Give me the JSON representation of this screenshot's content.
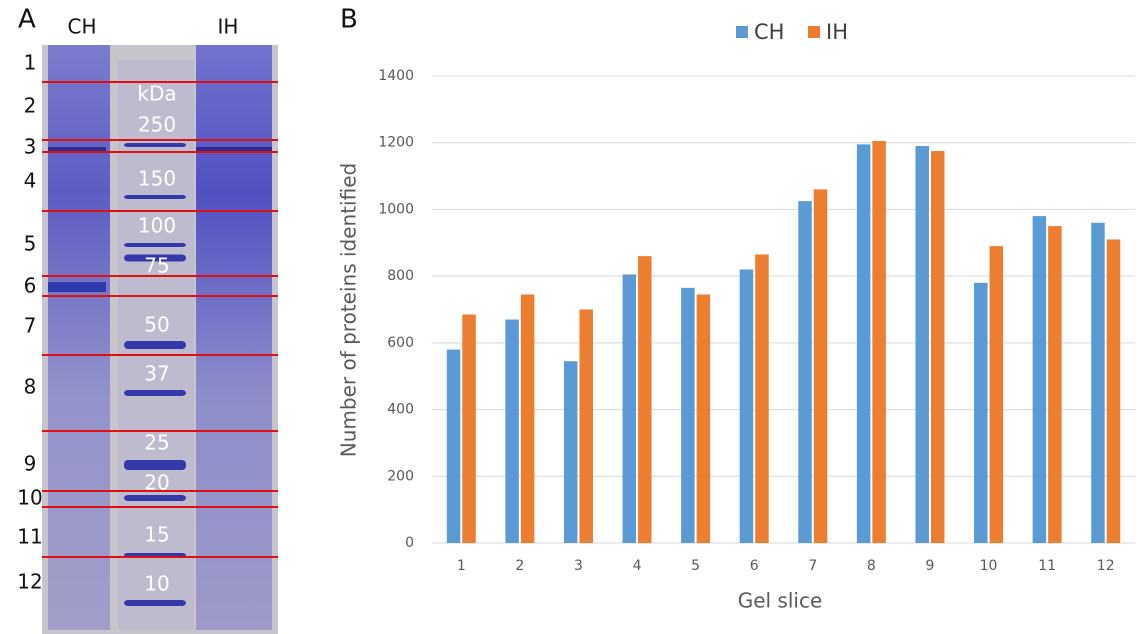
{
  "gel": {
    "panel_label": "A",
    "lanes": [
      "CH",
      "IH"
    ],
    "slices": [
      "1",
      "2",
      "3",
      "4",
      "5",
      "6",
      "7",
      "8",
      "9",
      "10",
      "11",
      "12"
    ],
    "marker_unit": "kDa",
    "markers": [
      250,
      150,
      100,
      75,
      50,
      37,
      25,
      20,
      15,
      10
    ]
  },
  "chart_data": {
    "type": "bar",
    "panel_label": "B",
    "x_label": "Gel slice",
    "y_label": "Number of proteins identified",
    "categories": [
      "1",
      "2",
      "3",
      "4",
      "5",
      "6",
      "7",
      "8",
      "9",
      "10",
      "11",
      "12"
    ],
    "series": [
      {
        "name": "CH",
        "color": "#5b9bd5",
        "values": [
          580,
          670,
          545,
          805,
          765,
          820,
          1025,
          1195,
          1190,
          780,
          980,
          960
        ]
      },
      {
        "name": "IH",
        "color": "#ed7d31",
        "values": [
          685,
          745,
          700,
          860,
          745,
          865,
          1060,
          1205,
          1175,
          890,
          950,
          910
        ]
      }
    ],
    "ylim": [
      0,
      1400
    ],
    "yticks": [
      0,
      200,
      400,
      600,
      800,
      1000,
      1200,
      1400
    ],
    "grid": true,
    "legend": "top"
  }
}
